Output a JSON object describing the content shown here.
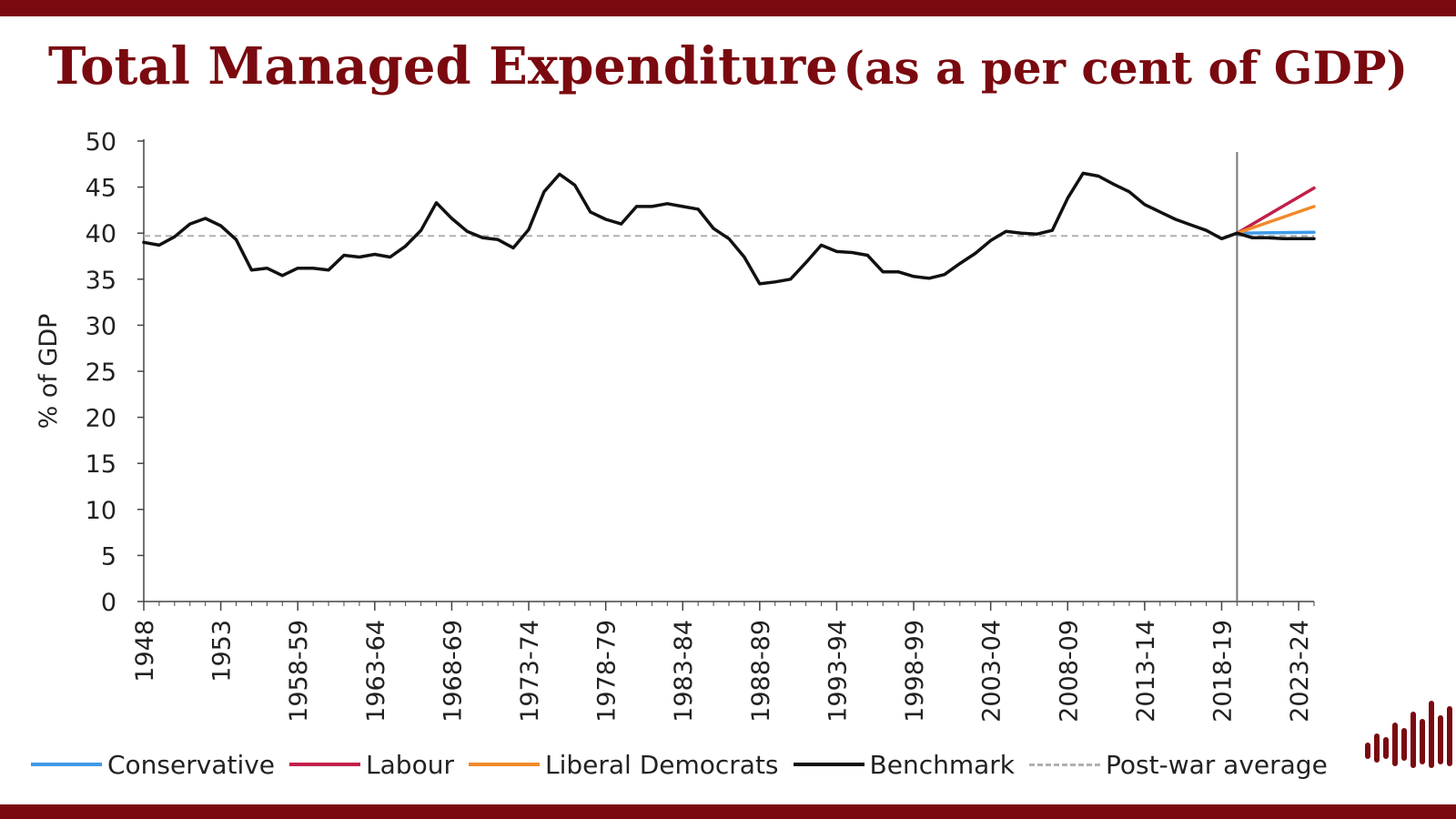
{
  "title": {
    "main": "Total Managed Expenditure",
    "sub": "(as a per cent of GDP)"
  },
  "colors": {
    "brand": "#7a0a10",
    "conservative": "#3f9be8",
    "labour": "#c2204a",
    "liberal_democrats": "#f08a2a",
    "benchmark": "#111111",
    "post_war_average": "#b0b0b0",
    "forecast_divider": "#777777"
  },
  "icons": {
    "logo": "bar-waveform-logo"
  },
  "chart_data": {
    "type": "line",
    "ylabel": "% of GDP",
    "xlabel": "",
    "ylim": [
      0,
      50
    ],
    "yticks": [
      0,
      5,
      10,
      15,
      20,
      25,
      30,
      35,
      40,
      45,
      50
    ],
    "xlim": [
      1948,
      2024
    ],
    "xtick_labels": [
      "1948",
      "1953",
      "1958-59",
      "1963-64",
      "1968-69",
      "1973-74",
      "1978-79",
      "1983-84",
      "1988-89",
      "1993-94",
      "1998-99",
      "2003-04",
      "2008-09",
      "2013-14",
      "2018-19",
      "2023-24"
    ],
    "grid": false,
    "legend_position": "bottom",
    "forecast_start": 2019,
    "reference_line": {
      "name": "Post-war average",
      "y": 39.7
    },
    "series": [
      {
        "name": "Benchmark",
        "x": [
          1948,
          1949,
          1950,
          1951,
          1952,
          1953,
          1954,
          1955,
          1956,
          1957,
          1958,
          1959,
          1960,
          1961,
          1962,
          1963,
          1964,
          1965,
          1966,
          1967,
          1968,
          1969,
          1970,
          1971,
          1972,
          1973,
          1974,
          1975,
          1976,
          1977,
          1978,
          1979,
          1980,
          1981,
          1982,
          1983,
          1984,
          1985,
          1986,
          1987,
          1988,
          1989,
          1990,
          1991,
          1992,
          1993,
          1994,
          1995,
          1996,
          1997,
          1998,
          1999,
          2000,
          2001,
          2002,
          2003,
          2004,
          2005,
          2006,
          2007,
          2008,
          2009,
          2010,
          2011,
          2012,
          2013,
          2014,
          2015,
          2016,
          2017,
          2018,
          2019,
          2020,
          2021,
          2022,
          2023,
          2024
        ],
        "values": [
          39,
          38.7,
          39.6,
          41,
          41.6,
          40.8,
          39.3,
          36,
          36.2,
          35.4,
          36.2,
          36.2,
          36,
          37.6,
          37.4,
          37.7,
          37.4,
          38.6,
          40.3,
          43.3,
          41.6,
          40.2,
          39.5,
          39.3,
          38.4,
          40.4,
          44.5,
          46.4,
          45.2,
          42.3,
          41.5,
          41,
          42.9,
          42.9,
          43.2,
          42.9,
          42.6,
          40.5,
          39.4,
          37.4,
          34.5,
          34.7,
          35,
          36.8,
          38.7,
          38,
          37.9,
          37.6,
          35.8,
          35.8,
          35.3,
          35.1,
          35.5,
          36.7,
          37.8,
          39.2,
          40.2,
          40,
          39.9,
          40.3,
          43.8,
          46.5,
          46.2,
          45.3,
          44.5,
          43.1,
          42.3,
          41.5,
          40.9,
          40.3,
          39.4,
          40,
          39.5,
          39.5,
          39.4,
          39.4,
          39.4
        ]
      },
      {
        "name": "Conservative",
        "x": [
          2019,
          2024
        ],
        "values": [
          40,
          40.1
        ]
      },
      {
        "name": "Labour",
        "x": [
          2019,
          2024
        ],
        "values": [
          40,
          44.9
        ]
      },
      {
        "name": "Liberal Democrats",
        "x": [
          2019,
          2024
        ],
        "values": [
          40,
          42.9
        ]
      }
    ],
    "legend": [
      {
        "name": "Conservative",
        "style": "solid",
        "color": "#3f9be8"
      },
      {
        "name": "Labour",
        "style": "solid",
        "color": "#c2204a"
      },
      {
        "name": "Liberal Democrats",
        "style": "solid",
        "color": "#f08a2a"
      },
      {
        "name": "Benchmark",
        "style": "solid",
        "color": "#111111"
      },
      {
        "name": "Post-war average",
        "style": "dashed",
        "color": "#b0b0b0"
      }
    ]
  }
}
